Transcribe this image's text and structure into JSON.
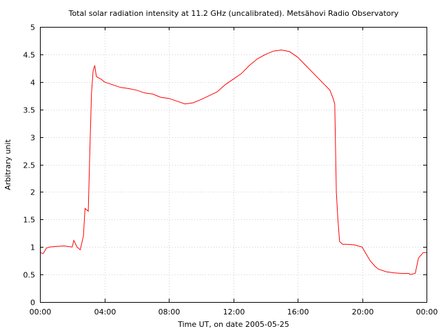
{
  "chart_data": {
    "type": "line",
    "title": "Total solar radiation intensity at 11.2 GHz (uncalibrated). Metsähovi Radio Observatory",
    "xlabel": "Time UT, on date 2005-05-25",
    "ylabel": "Arbitrary unit",
    "xlim": [
      0,
      24
    ],
    "ylim": [
      0,
      5
    ],
    "grid": true,
    "x_ticks": [
      {
        "value": 0,
        "label": "00:00"
      },
      {
        "value": 4,
        "label": "04:00"
      },
      {
        "value": 8,
        "label": "08:00"
      },
      {
        "value": 12,
        "label": "12:00"
      },
      {
        "value": 16,
        "label": "16:00"
      },
      {
        "value": 20,
        "label": "20:00"
      },
      {
        "value": 24,
        "label": "00:00"
      }
    ],
    "y_ticks": [
      {
        "value": 0,
        "label": "0"
      },
      {
        "value": 0.5,
        "label": "0.5"
      },
      {
        "value": 1,
        "label": "1"
      },
      {
        "value": 1.5,
        "label": "1.5"
      },
      {
        "value": 2,
        "label": "2"
      },
      {
        "value": 2.5,
        "label": "2.5"
      },
      {
        "value": 3,
        "label": "3"
      },
      {
        "value": 3.5,
        "label": "3.5"
      },
      {
        "value": 4,
        "label": "4"
      },
      {
        "value": 4.5,
        "label": "4.5"
      },
      {
        "value": 5,
        "label": "5"
      }
    ],
    "series": [
      {
        "color": "#ff0000",
        "x": [
          0.0,
          0.2,
          0.4,
          0.6,
          1.0,
          1.5,
          2.0,
          2.1,
          2.3,
          2.5,
          2.7,
          2.8,
          3.0,
          3.1,
          3.2,
          3.3,
          3.4,
          3.5,
          3.6,
          3.8,
          4.0,
          4.5,
          5.0,
          5.5,
          6.0,
          6.5,
          7.0,
          7.5,
          8.0,
          8.5,
          9.0,
          9.5,
          10.0,
          10.5,
          11.0,
          11.5,
          12.0,
          12.5,
          13.0,
          13.5,
          14.0,
          14.5,
          15.0,
          15.5,
          16.0,
          16.5,
          17.0,
          17.5,
          18.0,
          18.2,
          18.3,
          18.4,
          18.5,
          18.6,
          18.8,
          19.0,
          19.5,
          20.0,
          20.3,
          20.5,
          20.8,
          21.0,
          21.5,
          22.0,
          22.5,
          22.9,
          23.0,
          23.3,
          23.5,
          23.8,
          24.0
        ],
        "y": [
          0.9,
          0.88,
          0.98,
          1.0,
          1.01,
          1.02,
          1.0,
          1.12,
          1.0,
          0.95,
          1.2,
          1.7,
          1.65,
          2.8,
          3.8,
          4.2,
          4.3,
          4.1,
          4.08,
          4.05,
          4.0,
          3.95,
          3.9,
          3.88,
          3.85,
          3.8,
          3.78,
          3.72,
          3.7,
          3.65,
          3.6,
          3.62,
          3.68,
          3.75,
          3.82,
          3.95,
          4.05,
          4.15,
          4.3,
          4.42,
          4.5,
          4.56,
          4.58,
          4.55,
          4.45,
          4.3,
          4.15,
          4.0,
          3.85,
          3.7,
          3.6,
          2.0,
          1.5,
          1.1,
          1.05,
          1.05,
          1.04,
          1.0,
          0.85,
          0.75,
          0.65,
          0.6,
          0.55,
          0.53,
          0.52,
          0.52,
          0.5,
          0.52,
          0.8,
          0.9,
          0.9
        ]
      }
    ]
  }
}
